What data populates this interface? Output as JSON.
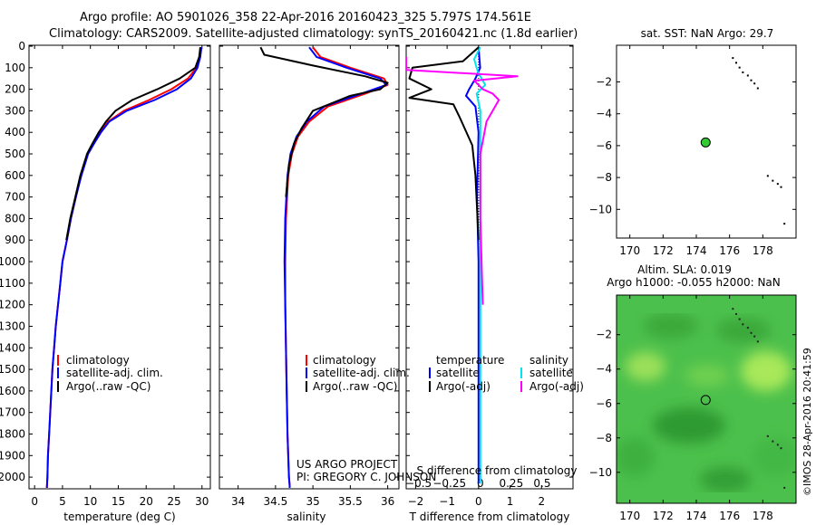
{
  "header": {
    "line1": "Argo profile: AO 5901026_358 22-Apr-2016 20160423_325 5.797S 174.561E",
    "line2": "Climatology: CARS2009. Satellite-adjusted climatology: synTS_20160421.nc (1.8d earlier)"
  },
  "credit": {
    "line1": "US ARGO PROJECT",
    "line2": "PI: GREGORY C. JOHNSON"
  },
  "watermark": "©IMOS 28-Apr-2016 20:41:59",
  "colors": {
    "climatology": "#ff0000",
    "satellite": "#0000ff",
    "argo": "#000000",
    "satellite_s": "#00e5ee",
    "argo_s": "#ff00ff"
  },
  "chart_data": [
    {
      "type": "line",
      "name": "temperature-profile",
      "xlabel": "temperature (deg C)",
      "ylabel": "",
      "xlim": [
        -1,
        31.5
      ],
      "ylim": [
        2050,
        0
      ],
      "xticks": [
        0,
        5,
        10,
        15,
        20,
        25,
        30
      ],
      "xtick_labels": [
        "0",
        "5",
        "10",
        "15",
        "20",
        "25",
        "30"
      ],
      "yticks": [
        0,
        100,
        200,
        300,
        400,
        500,
        600,
        700,
        800,
        900,
        1000,
        1100,
        1200,
        1300,
        1400,
        1500,
        1600,
        1700,
        1800,
        1900,
        2000
      ],
      "ytick_labels": [
        "0",
        "100",
        "200",
        "300",
        "400",
        "500",
        "600",
        "700",
        "800",
        "900",
        "1000",
        "1100",
        "1200",
        "1300",
        "1400",
        "1500",
        "1600",
        "1700",
        "1800",
        "1900",
        "2000"
      ],
      "legend": [
        "climatology",
        "satellite-adj. clim.",
        "Argo(..raw -QC)"
      ],
      "series": [
        {
          "name": "climatology",
          "color": "#ff0000",
          "x": [
            29.8,
            29.6,
            29.0,
            27.5,
            24.5,
            20.5,
            16.0,
            13.2,
            11.8,
            10.6,
            9.5,
            8.3,
            7.4,
            6.5,
            5.8,
            5.0,
            4.6,
            4.2,
            3.8,
            3.5,
            3.2,
            3.0,
            2.8,
            2.6,
            2.4,
            2.3,
            2.2
          ],
          "y": [
            5,
            50,
            100,
            150,
            200,
            250,
            300,
            350,
            400,
            450,
            500,
            600,
            700,
            800,
            900,
            1000,
            1100,
            1200,
            1300,
            1400,
            1500,
            1600,
            1700,
            1800,
            1900,
            2000,
            2050
          ]
        },
        {
          "name": "satellite-adj. clim.",
          "color": "#0000ff",
          "x": [
            29.9,
            29.7,
            29.2,
            28.0,
            25.5,
            21.5,
            16.5,
            13.4,
            11.9,
            10.7,
            9.6,
            8.4,
            7.4,
            6.5,
            5.8,
            5.0,
            4.6,
            4.2,
            3.8,
            3.5,
            3.2,
            3.0,
            2.8,
            2.6,
            2.4,
            2.3,
            2.2
          ],
          "y": [
            5,
            50,
            100,
            150,
            200,
            250,
            300,
            350,
            400,
            450,
            500,
            600,
            700,
            800,
            900,
            1000,
            1100,
            1200,
            1300,
            1400,
            1500,
            1600,
            1700,
            1800,
            1900,
            2000,
            2050
          ]
        },
        {
          "name": "Argo(..raw -QC)",
          "color": "#000000",
          "x": [
            29.7,
            29.5,
            28.8,
            26.0,
            22.0,
            17.5,
            14.5,
            12.8,
            11.5,
            10.4,
            9.4,
            8.2,
            7.3,
            6.4,
            5.7
          ],
          "y": [
            5,
            50,
            100,
            150,
            200,
            250,
            300,
            350,
            400,
            450,
            500,
            600,
            700,
            800,
            900
          ]
        }
      ]
    },
    {
      "type": "line",
      "name": "salinity-profile",
      "xlabel": "salinity",
      "ylabel": "",
      "xlim": [
        33.75,
        36.15
      ],
      "ylim": [
        2050,
        0
      ],
      "xticks": [
        34,
        34.5,
        35,
        35.5,
        36
      ],
      "xtick_labels": [
        "34",
        "34.5",
        "35",
        "35.5",
        "36"
      ],
      "legend": [
        "climatology",
        "satellite-adj. clim.",
        "Argo(..raw -QC)"
      ],
      "series": [
        {
          "name": "climatology",
          "color": "#ff0000",
          "x": [
            35.0,
            35.1,
            35.5,
            35.95,
            36.0,
            35.7,
            35.2,
            34.95,
            34.8,
            34.72,
            34.67,
            34.64,
            34.63,
            34.63,
            34.64,
            34.65,
            34.66,
            34.67,
            34.68,
            34.69,
            34.69
          ],
          "y": [
            5,
            50,
            100,
            150,
            180,
            220,
            280,
            350,
            420,
            500,
            600,
            800,
            1000,
            1200,
            1400,
            1600,
            1800,
            1900,
            2000,
            2040,
            2050
          ]
        },
        {
          "name": "satellite-adj. clim.",
          "color": "#0000ff",
          "x": [
            34.95,
            35.05,
            35.45,
            35.9,
            35.98,
            35.65,
            35.15,
            34.92,
            34.78,
            34.7,
            34.66,
            34.63,
            34.62,
            34.63,
            34.64,
            34.65,
            34.66,
            34.67,
            34.68,
            34.69,
            34.69
          ],
          "y": [
            5,
            50,
            100,
            150,
            180,
            220,
            280,
            350,
            420,
            500,
            600,
            800,
            1000,
            1200,
            1400,
            1600,
            1800,
            1900,
            2000,
            2040,
            2050
          ]
        },
        {
          "name": "Argo(..raw -QC)",
          "color": "#000000",
          "x": [
            34.3,
            34.35,
            35.0,
            35.7,
            36.0,
            35.9,
            35.5,
            35.0,
            34.85,
            34.75,
            34.68,
            34.64
          ],
          "y": [
            5,
            40,
            90,
            140,
            170,
            200,
            230,
            300,
            380,
            450,
            550,
            700
          ]
        }
      ]
    },
    {
      "type": "line",
      "name": "difference-from-climatology",
      "xlabel": "T difference from climatology",
      "x2label": "S difference from climatology",
      "xlim": [
        -2.3,
        3.0
      ],
      "x2lim": [
        -0.6,
        0.75
      ],
      "ylim": [
        2050,
        0
      ],
      "xticks": [
        -2,
        -1,
        0,
        1,
        2
      ],
      "xtick_labels": [
        "−2",
        "−1",
        "0",
        "1",
        "2"
      ],
      "x2ticks": [
        -0.5,
        -0.25,
        0,
        0.25,
        0.5
      ],
      "x2tick_labels": [
        "−0.5",
        "−0.25",
        "0",
        "0.25",
        "0.5"
      ],
      "legend_title_t": "temperature",
      "legend_title_s": "salinity",
      "legend_t": [
        "satellite",
        "Argo(-adj)"
      ],
      "legend_s": [
        "satellite",
        "Argo(-adj)"
      ],
      "series": [
        {
          "name": "T satellite",
          "color": "#0000ff",
          "axis": "T",
          "x": [
            0.0,
            0.05,
            -0.1,
            -0.3,
            -0.4,
            -0.1,
            0.0,
            -0.05,
            0.0,
            0.0,
            0.0,
            0.0
          ],
          "y": [
            5,
            100,
            150,
            200,
            230,
            280,
            400,
            700,
            1000,
            1300,
            1600,
            2030
          ]
        },
        {
          "name": "T Argo(-adj)",
          "color": "#000000",
          "axis": "T",
          "x": [
            0.0,
            -0.5,
            -2.1,
            -2.2,
            -1.5,
            -2.2,
            -0.8,
            -0.6,
            -0.2,
            -0.1,
            -0.05,
            0.0
          ],
          "y": [
            5,
            70,
            100,
            150,
            200,
            240,
            270,
            330,
            460,
            600,
            750,
            900
          ]
        },
        {
          "name": "S satellite",
          "color": "#00e5ee",
          "axis": "S",
          "x": [
            0.0,
            -0.05,
            -0.02,
            0.04,
            -0.03,
            0.0,
            0.0,
            0.0,
            0.0,
            0.0,
            0.0
          ],
          "y": [
            5,
            60,
            120,
            180,
            220,
            300,
            500,
            900,
            1300,
            1700,
            2030
          ]
        },
        {
          "name": "S Argo(-adj)",
          "color": "#ff00ff",
          "axis": "S",
          "x": [
            -0.6,
            -0.6,
            0.3,
            -0.05,
            0.02,
            0.1,
            0.15,
            0.05,
            0.0,
            0.0,
            0.02
          ],
          "y": [
            50,
            110,
            140,
            160,
            200,
            220,
            250,
            350,
            500,
            800,
            1200
          ]
        }
      ]
    },
    {
      "type": "scatter",
      "name": "location-map-sst",
      "title": "sat. SST: NaN Argo: 29.7",
      "xlim": [
        169.2,
        180
      ],
      "ylim": [
        -11.8,
        0.3
      ],
      "xticks": [
        170,
        172,
        174,
        176,
        178
      ],
      "xtick_labels": [
        "170",
        "172",
        "174",
        "176",
        "178"
      ],
      "yticks": [
        -2,
        -4,
        -6,
        -8,
        -10
      ],
      "ytick_labels": [
        "−2",
        "−4",
        "−6",
        "−8",
        "−10"
      ],
      "float_position": {
        "lon": 174.561,
        "lat": -5.797
      },
      "coast": {
        "lon": [
          176.2,
          176.4,
          176.6,
          176.8,
          177.1,
          177.3,
          177.5,
          177.7,
          178.3,
          178.6,
          178.9,
          179.1,
          179.3
        ],
        "lat": [
          -0.5,
          -0.8,
          -1.1,
          -1.4,
          -1.6,
          -1.9,
          -2.1,
          -2.4,
          -7.9,
          -8.2,
          -8.4,
          -8.6,
          -10.9
        ]
      }
    },
    {
      "type": "heatmap",
      "name": "location-map-sla",
      "title1": "Altim. SLA: 0.019",
      "title2": "Argo h1000: -0.055 h2000: NaN",
      "xlim": [
        169.2,
        180
      ],
      "ylim": [
        -11.8,
        0.3
      ],
      "xticks": [
        170,
        172,
        174,
        176,
        178
      ],
      "xtick_labels": [
        "170",
        "172",
        "174",
        "176",
        "178"
      ],
      "yticks": [
        -2,
        -4,
        -6,
        -8,
        -10
      ],
      "ytick_labels": [
        "−2",
        "−4",
        "−6",
        "−8",
        "−10"
      ],
      "float_position": {
        "lon": 174.561,
        "lat": -5.797
      }
    }
  ]
}
